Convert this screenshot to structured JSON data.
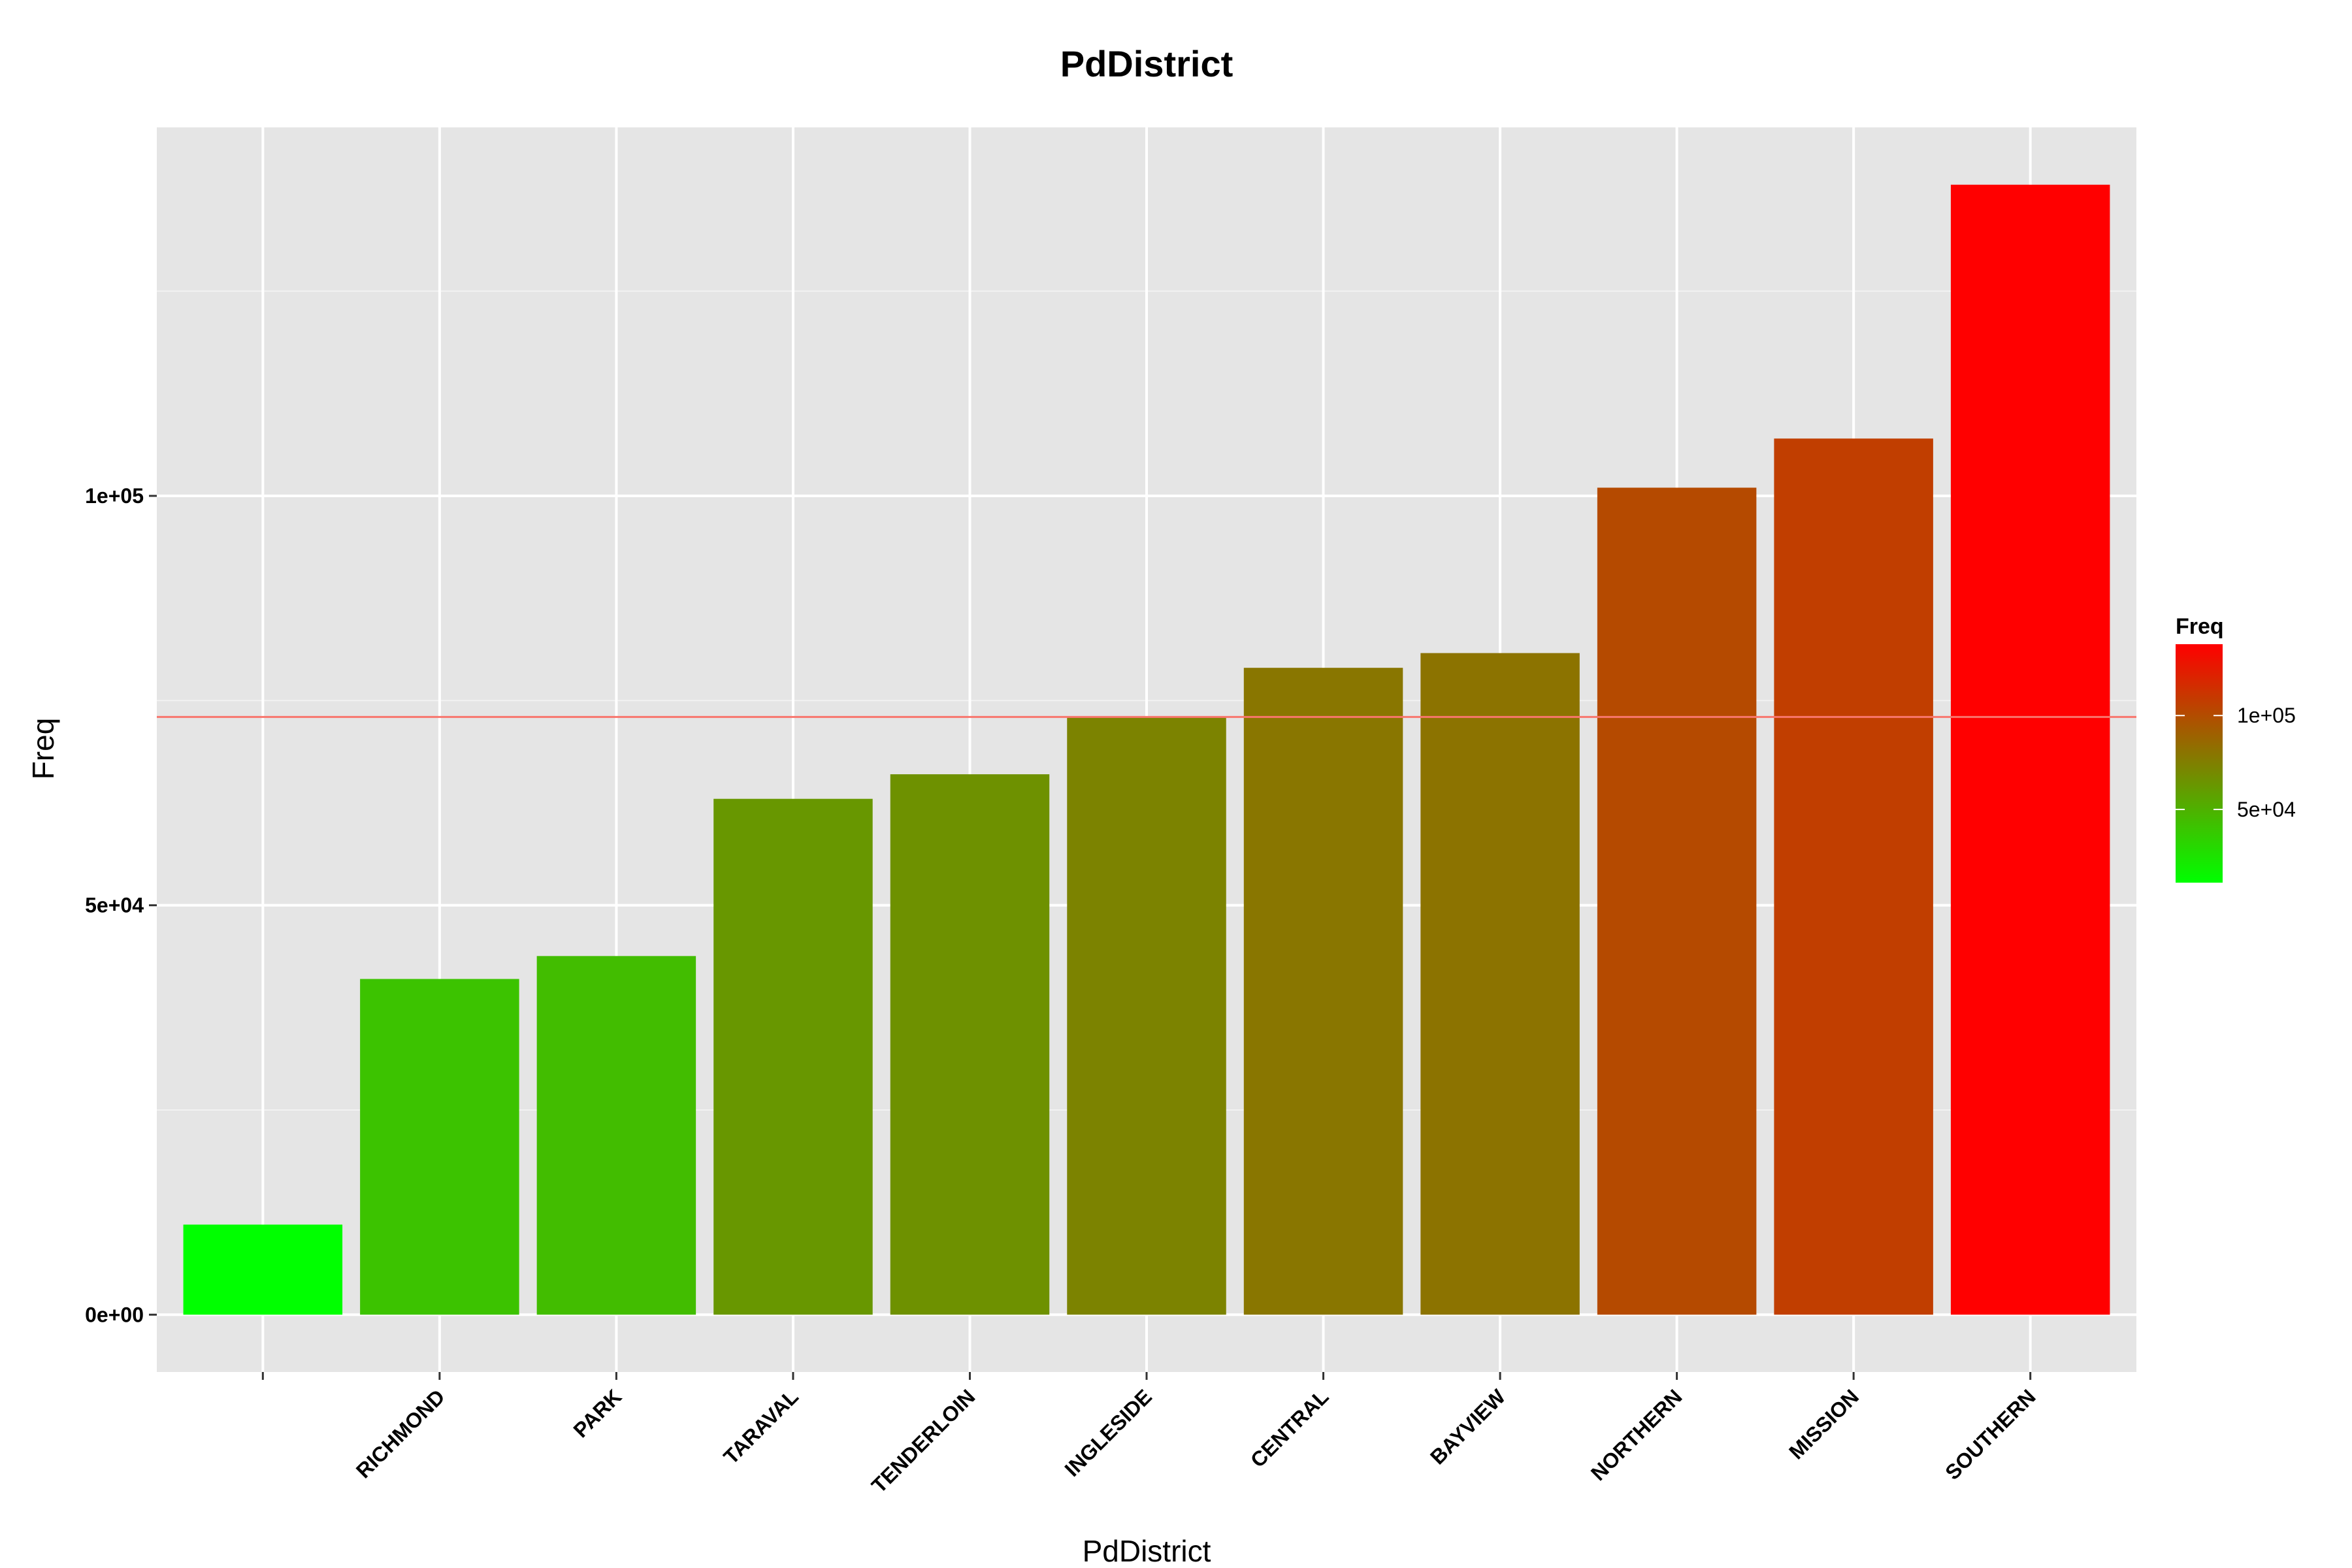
{
  "chart_data": {
    "type": "bar",
    "title": "PdDistrict",
    "xlabel": "PdDistrict",
    "ylabel": "Freq",
    "categories": [
      "",
      "RICHMOND",
      "PARK",
      "TARAVAL",
      "TENDERLOIN",
      "INGLESIDE",
      "CENTRAL",
      "BAYVIEW",
      "NORTHERN",
      "MISSION",
      "SOUTHERN"
    ],
    "values": [
      11000,
      41000,
      43800,
      63000,
      66000,
      73000,
      79000,
      80800,
      101000,
      107000,
      138000
    ],
    "ylim": [
      -7000,
      145000
    ],
    "y_ticks": [
      0,
      50000,
      100000
    ],
    "y_tick_labels": [
      "0e+00",
      "5e+04",
      "1e+05"
    ],
    "reference_line": {
      "value": 73000,
      "color": "#F8766D"
    },
    "grid": true,
    "panel_background": "#E5E5E5",
    "fill_scale": {
      "low_color": "#00FF00",
      "high_color": "#FF0000",
      "domain": [
        11000,
        138000
      ]
    },
    "legend": {
      "title": "Freq",
      "position": "right",
      "ticks": [
        50000,
        100000
      ],
      "tick_labels": [
        "5e+04",
        "1e+05"
      ]
    }
  }
}
